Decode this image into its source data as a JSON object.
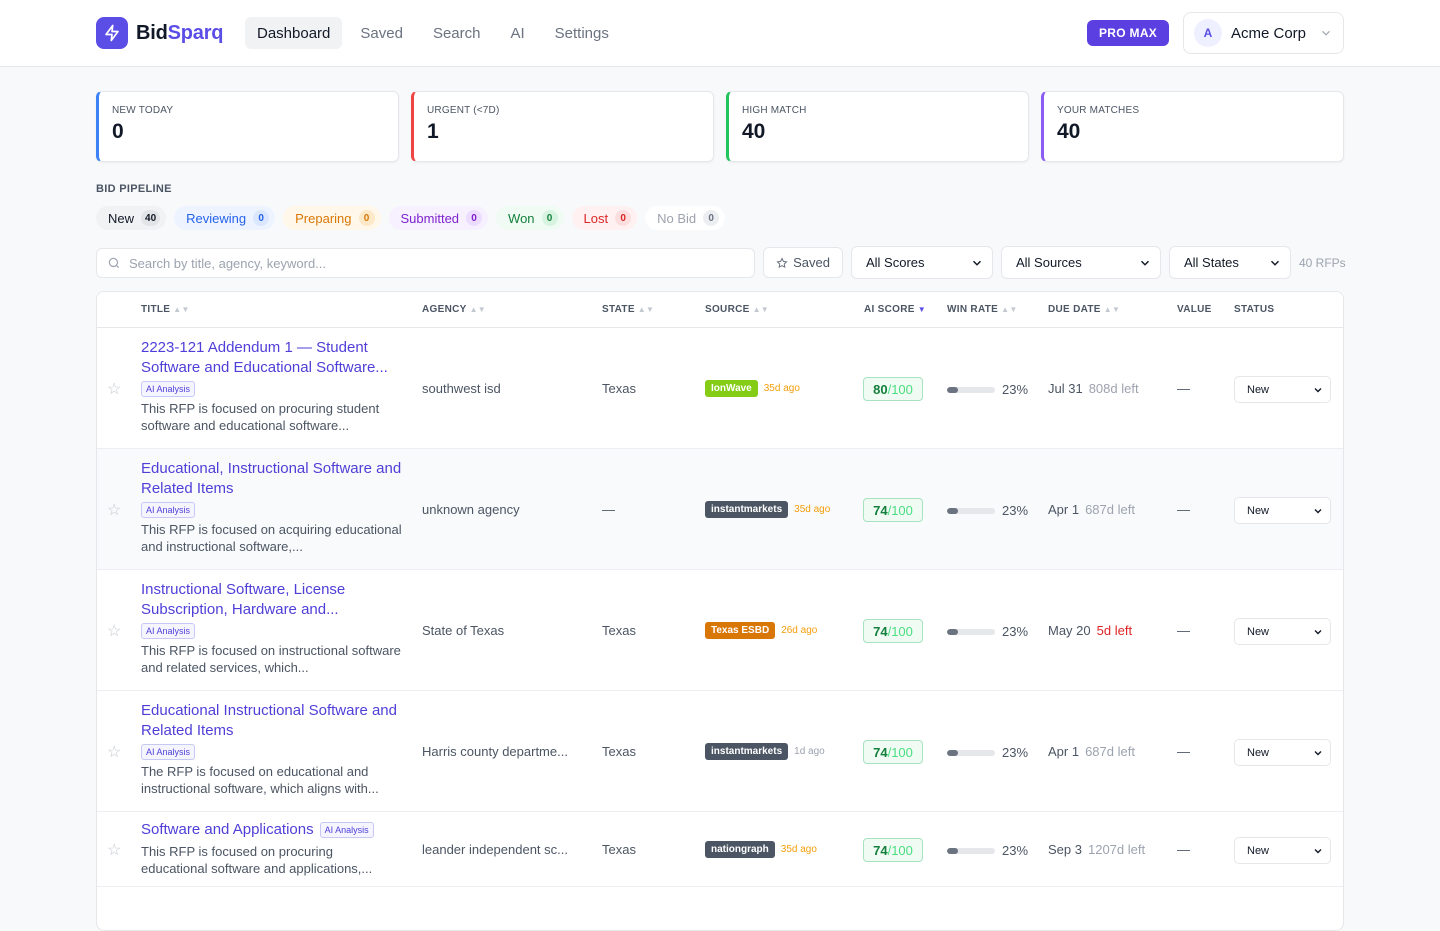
{
  "brand": {
    "part1": "Bid",
    "part2": "Sparq",
    "accent": "#5b4ee6"
  },
  "nav": {
    "items": [
      "Dashboard",
      "Saved",
      "Search",
      "AI",
      "Settings"
    ],
    "active": "Dashboard"
  },
  "plan_badge": "PRO MAX",
  "account": {
    "initial": "A",
    "name": "Acme Corp"
  },
  "stats": [
    {
      "label": "NEW TODAY",
      "value": "0",
      "color": "#3b82f6"
    },
    {
      "label": "URGENT (<7D)",
      "value": "1",
      "color": "#ef4444"
    },
    {
      "label": "HIGH MATCH",
      "value": "40",
      "color": "#22c55e"
    },
    {
      "label": "YOUR MATCHES",
      "value": "40",
      "color": "#8b5cf6"
    }
  ],
  "pipeline": {
    "title": "BID PIPELINE",
    "stages": [
      {
        "label": "New",
        "count": "40",
        "bg": "#f1f2f4",
        "fg": "#111827",
        "cbg": "#e2e4e8",
        "cfg": "#111827"
      },
      {
        "label": "Reviewing",
        "count": "0",
        "bg": "#eef4ff",
        "fg": "#2563eb",
        "cbg": "#dbe6ff",
        "cfg": "#2563eb"
      },
      {
        "label": "Preparing",
        "count": "0",
        "bg": "#fff7ea",
        "fg": "#d97706",
        "cbg": "#fde9c8",
        "cfg": "#d97706"
      },
      {
        "label": "Submitted",
        "count": "0",
        "bg": "#f7f1ff",
        "fg": "#7e22ce",
        "cbg": "#ecdcff",
        "cfg": "#7e22ce"
      },
      {
        "label": "Won",
        "count": "0",
        "bg": "#effbf3",
        "fg": "#15803d",
        "cbg": "#d7f4e1",
        "cfg": "#15803d"
      },
      {
        "label": "Lost",
        "count": "0",
        "bg": "#fff1f1",
        "fg": "#dc2626",
        "cbg": "#fddede",
        "cfg": "#dc2626"
      },
      {
        "label": "No Bid",
        "count": "0",
        "bg": "#ffffff",
        "fg": "#9ca3af",
        "cbg": "#eceef1",
        "cfg": "#6b7280"
      }
    ]
  },
  "filters": {
    "search_placeholder": "Search by title, agency, keyword...",
    "saved_label": "Saved",
    "scores": "All Scores",
    "sources": "All Sources",
    "states": "All States",
    "count": "40 RFPs"
  },
  "table": {
    "headers": {
      "title": "TITLE",
      "agency": "AGENCY",
      "state": "STATE",
      "source": "SOURCE",
      "score": "AI SCORE",
      "winrate": "WIN RATE",
      "due": "DUE DATE",
      "value": "VALUE",
      "status": "STATUS"
    },
    "rows": [
      {
        "title": "2223-121 Addendum 1 — Student Software and Educational Software...",
        "ai_badge": "AI Analysis",
        "desc": "This RFP is focused on procuring student software and educational software...",
        "agency": "southwest isd",
        "state": "Texas",
        "source": "IonWave",
        "source_color": "#84cc16",
        "age": "35d ago",
        "age_color": "#f59e0b",
        "score": "80",
        "score_den": "/100",
        "win_rate": 0.23,
        "win_label": "23%",
        "due": "Jul 31",
        "days_left": "808d left",
        "urgent": false,
        "value": "—",
        "status": "New"
      },
      {
        "title": "Educational, Instructional Software and Related Items",
        "ai_badge": "AI Analysis",
        "desc": "This RFP is focused on acquiring educational and instructional software,...",
        "agency": "unknown agency",
        "state": "—",
        "source": "instantmarkets",
        "source_color": "#4b5563",
        "age": "35d ago",
        "age_color": "#f59e0b",
        "score": "74",
        "score_den": "/100",
        "win_rate": 0.23,
        "win_label": "23%",
        "due": "Apr 1",
        "days_left": "687d left",
        "urgent": false,
        "value": "—",
        "status": "New"
      },
      {
        "title": "Instructional Software, License Subscription, Hardware and...",
        "ai_badge": "AI Analysis",
        "desc": "This RFP is focused on instructional software and related services, which...",
        "agency": "State of Texas",
        "state": "Texas",
        "source": "Texas ESBD",
        "source_color": "#d97706",
        "age": "26d ago",
        "age_color": "#f59e0b",
        "score": "74",
        "score_den": "/100",
        "win_rate": 0.23,
        "win_label": "23%",
        "due": "May 20",
        "days_left": "5d left",
        "urgent": true,
        "value": "—",
        "status": "New"
      },
      {
        "title": "Educational Instructional Software and Related Items",
        "ai_badge": "AI Analysis",
        "desc": "The RFP is focused on educational and instructional software, which aligns with...",
        "agency": "Harris county departme...",
        "state": "Texas",
        "source": "instantmarkets",
        "source_color": "#4b5563",
        "age": "1d ago",
        "age_color": "#9ca3af",
        "score": "74",
        "score_den": "/100",
        "win_rate": 0.23,
        "win_label": "23%",
        "due": "Apr 1",
        "days_left": "687d left",
        "urgent": false,
        "value": "—",
        "status": "New"
      },
      {
        "title": "Software and Applications",
        "ai_badge": "AI Analysis",
        "desc": "This RFP is focused on procuring educational software and applications,...",
        "agency": "leander independent sc...",
        "state": "Texas",
        "source": "nationgraph",
        "source_color": "#4b5563",
        "age": "35d ago",
        "age_color": "#f59e0b",
        "score": "74",
        "score_den": "/100",
        "win_rate": 0.23,
        "win_label": "23%",
        "due": "Sep 3",
        "days_left": "1207d left",
        "urgent": false,
        "value": "—",
        "status": "New"
      }
    ]
  }
}
